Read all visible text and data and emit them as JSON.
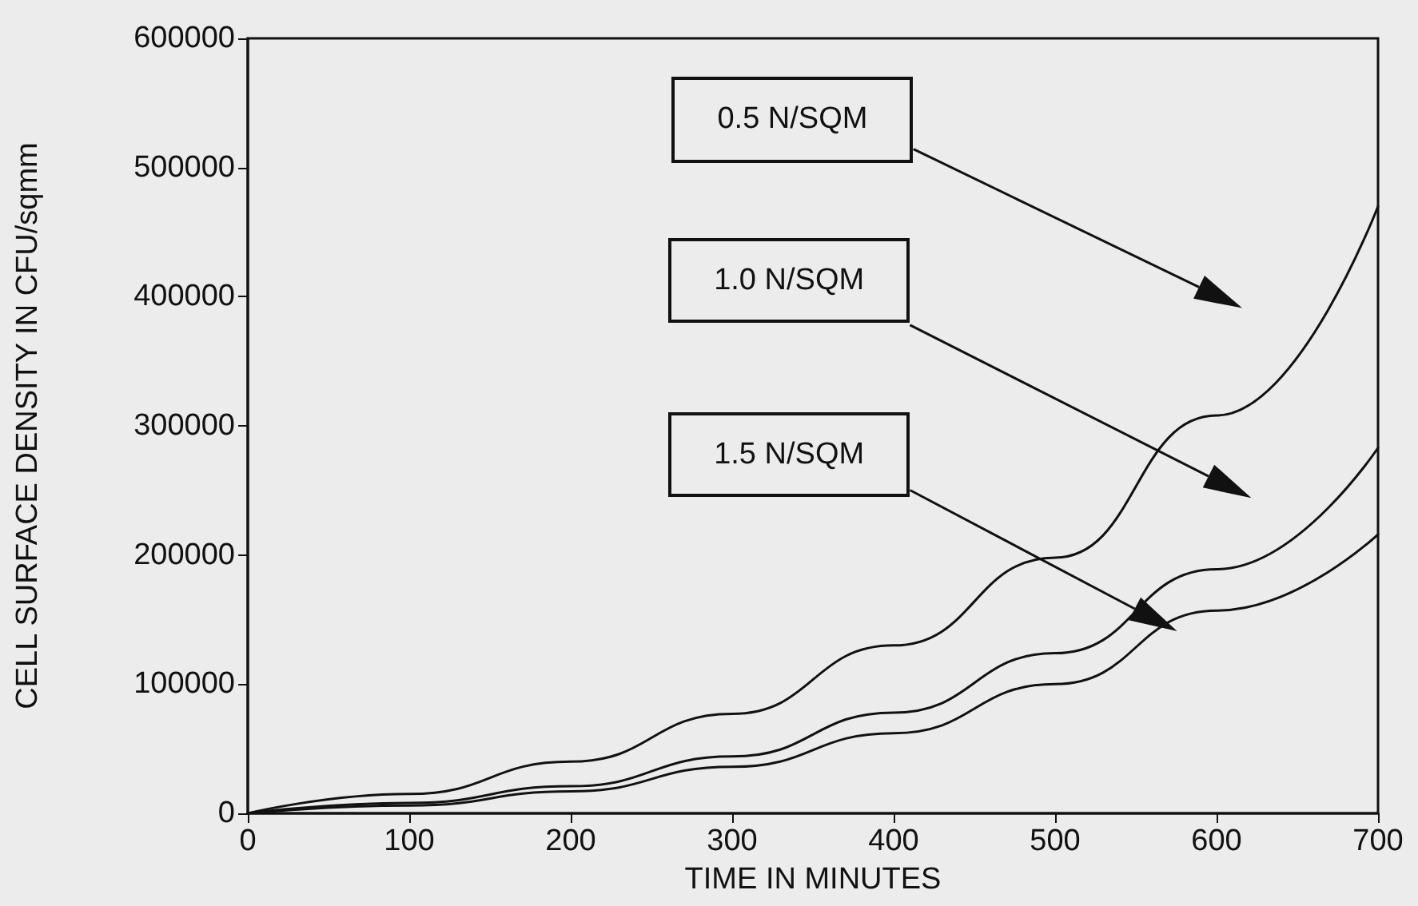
{
  "chart_data": {
    "type": "line",
    "xlabel": "TIME IN MINUTES",
    "ylabel": "CELL SURFACE DENSITY IN CFU/sqmm",
    "x": [
      0,
      100,
      200,
      300,
      400,
      500,
      600,
      700
    ],
    "series": [
      {
        "name": "0.5 N/SQM",
        "color": "#111111",
        "values": [
          0,
          15000,
          40000,
          77000,
          130000,
          198000,
          308000,
          470000
        ]
      },
      {
        "name": "1.0 N/SQM",
        "color": "#111111",
        "values": [
          0,
          8000,
          21000,
          44000,
          78000,
          124000,
          189000,
          283000
        ]
      },
      {
        "name": "1.5 N/SQM",
        "color": "#111111",
        "values": [
          0,
          6000,
          17000,
          36000,
          62000,
          100000,
          157000,
          216000
        ]
      }
    ],
    "xlim": [
      0,
      700
    ],
    "xticks": [
      0,
      100,
      200,
      300,
      400,
      500,
      600,
      700
    ],
    "ylim": [
      0,
      600000
    ],
    "yticks": [
      0,
      100000,
      200000,
      300000,
      400000,
      500000,
      600000
    ],
    "grid": false,
    "legend": false,
    "marker": "none",
    "line_style": "solid"
  }
}
